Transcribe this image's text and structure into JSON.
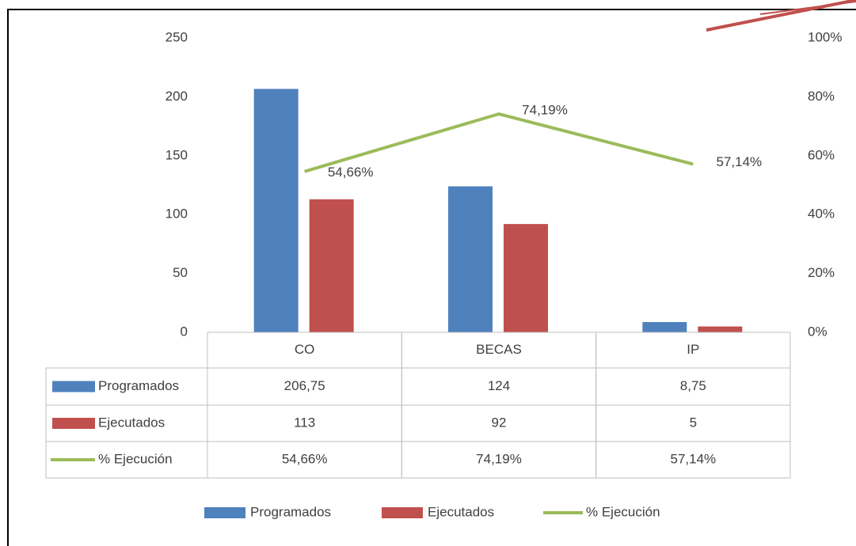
{
  "chart_data": {
    "type": "bar",
    "categories": [
      "CO",
      "BECAS",
      "IP"
    ],
    "series": [
      {
        "name": "Programados",
        "color": "#4f81bd",
        "values": [
          206.75,
          124,
          8.75
        ],
        "value_labels": [
          "206,75",
          "124",
          "8,75"
        ]
      },
      {
        "name": "Ejecutados",
        "color": "#c0504d",
        "values": [
          113,
          92,
          5
        ]
      },
      {
        "name": "% Ejecución",
        "type": "line",
        "axis": "y2",
        "color": "#9bbb59",
        "values": [
          54.66,
          74.19,
          57.14
        ],
        "value_labels": [
          "54,66%",
          "74,19%",
          "57,14%"
        ]
      }
    ],
    "ylim": [
      0,
      250
    ],
    "yticks": [
      0,
      50,
      100,
      150,
      200,
      250
    ],
    "y2lim": [
      0,
      100
    ],
    "y2ticks": [
      {
        "value": 0,
        "label": "0%"
      },
      {
        "value": 20,
        "label": "20%"
      },
      {
        "value": 40,
        "label": "40%"
      },
      {
        "value": 60,
        "label": "60%"
      },
      {
        "value": 80,
        "label": "80%"
      },
      {
        "value": 100,
        "label": "100%"
      }
    ],
    "data_table": true,
    "legend": "bottom"
  }
}
